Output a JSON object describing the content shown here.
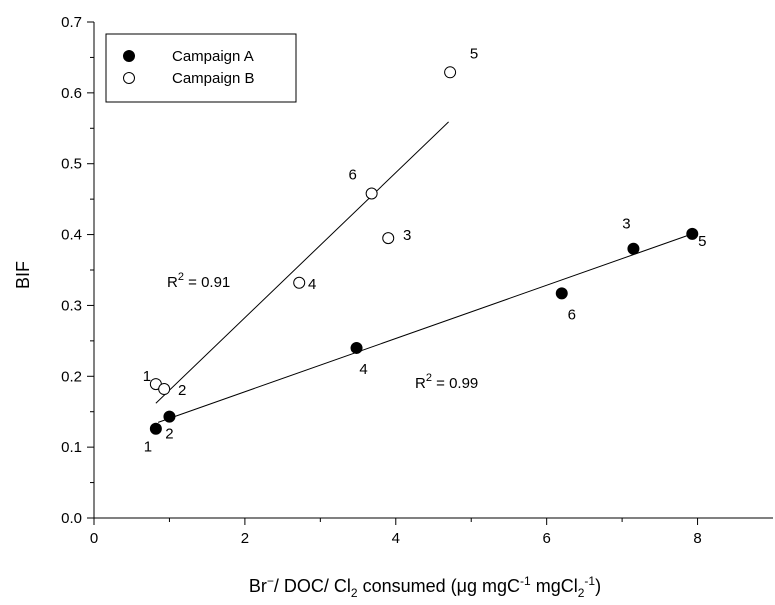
{
  "chart_data": {
    "type": "scatter",
    "xlabel": {
      "pre": "Br",
      "sup1": "−",
      "mid": "/ DOC/ Cl",
      "sub": "2",
      "post": " consumed (μg mgC",
      "sup2": "-1",
      "post2": " mgCl",
      "sub2": "2",
      "sup3": "-1",
      "end": ")"
    },
    "ylabel": "BIF",
    "xlim": [
      0,
      9
    ],
    "ylim": [
      0,
      0.7
    ],
    "x_ticks": [
      "0",
      "2",
      "4",
      "6",
      "8"
    ],
    "y_ticks": [
      "0.0",
      "0.1",
      "0.2",
      "0.3",
      "0.4",
      "0.5",
      "0.6",
      "0.7"
    ],
    "legend": {
      "position": "top-left"
    },
    "series": [
      {
        "name": "Campaign A",
        "marker": "filled",
        "color": "#000000",
        "points": [
          {
            "x": 0.82,
            "y": 0.126,
            "label": "1"
          },
          {
            "x": 1.0,
            "y": 0.143,
            "label": "2"
          },
          {
            "x": 7.15,
            "y": 0.38,
            "label": "3"
          },
          {
            "x": 3.48,
            "y": 0.24,
            "label": "4"
          },
          {
            "x": 7.93,
            "y": 0.401,
            "label": "5"
          },
          {
            "x": 6.2,
            "y": 0.317,
            "label": "6"
          }
        ],
        "fit": {
          "x": [
            0.85,
            7.93
          ],
          "y": [
            0.135,
            0.401
          ]
        },
        "r2_label": "0.99"
      },
      {
        "name": "Campaign B",
        "marker": "open",
        "color": "#000000",
        "points": [
          {
            "x": 0.82,
            "y": 0.189,
            "label": "1"
          },
          {
            "x": 0.93,
            "y": 0.182,
            "label": "2"
          },
          {
            "x": 3.9,
            "y": 0.395,
            "label": "3"
          },
          {
            "x": 2.72,
            "y": 0.332,
            "label": "4"
          },
          {
            "x": 4.72,
            "y": 0.629,
            "label": "5"
          },
          {
            "x": 3.68,
            "y": 0.458,
            "label": "6"
          }
        ],
        "fit": {
          "x": [
            0.82,
            4.7
          ],
          "y": [
            0.162,
            0.559
          ]
        },
        "r2_label": "0.91"
      }
    ]
  }
}
